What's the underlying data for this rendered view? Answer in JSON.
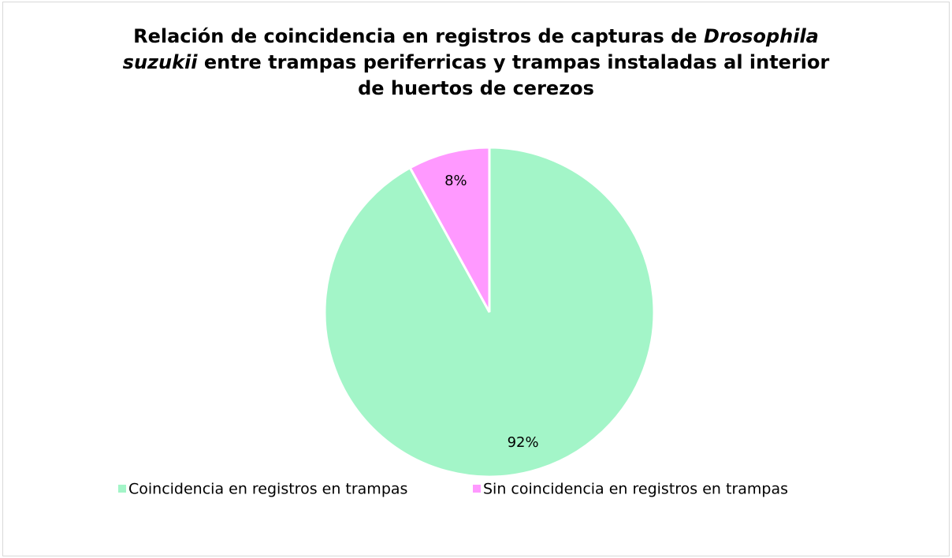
{
  "chart_data": {
    "type": "pie",
    "title": [
      "Relación de coincidencia en registros de capturas de ",
      "Drosophila suzukii",
      " entre trampas periferricas y trampas instaladas al interior de huertos de cerezos"
    ],
    "title_italic": [
      false,
      true,
      false
    ],
    "categories": [
      "Coincidencia en registros en trampas",
      "Sin coincidencia en registros en trampas"
    ],
    "values": [
      92,
      8
    ],
    "value_labels": [
      "92%",
      "8%"
    ],
    "colors": [
      "#a3f5c8",
      "#ff99ff"
    ],
    "legend": "bottom"
  }
}
